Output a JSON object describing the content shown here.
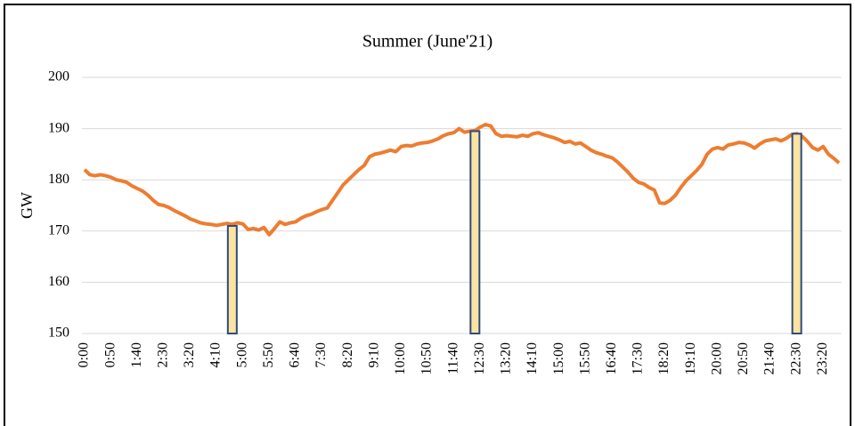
{
  "chart_data": {
    "type": "line",
    "title": "Summer (June'21)",
    "y_label": "GW",
    "categories": [
      "0:00",
      null,
      null,
      null,
      null,
      "0:50",
      null,
      null,
      null,
      null,
      "1:40",
      null,
      null,
      null,
      null,
      "2:30",
      null,
      null,
      null,
      null,
      "3:20",
      null,
      null,
      null,
      null,
      "4:10",
      null,
      null,
      null,
      null,
      "5:00",
      null,
      null,
      null,
      null,
      "5:50",
      null,
      null,
      null,
      null,
      "6:40",
      null,
      null,
      null,
      null,
      "7:30",
      null,
      null,
      null,
      null,
      "8:20",
      null,
      null,
      null,
      null,
      "9:10",
      null,
      null,
      null,
      null,
      "10:00",
      null,
      null,
      null,
      null,
      "10:50",
      null,
      null,
      null,
      null,
      "11:40",
      null,
      null,
      null,
      null,
      "12:30",
      null,
      null,
      null,
      null,
      "13:20",
      null,
      null,
      null,
      null,
      "14:10",
      null,
      null,
      null,
      null,
      "15:00",
      null,
      null,
      null,
      null,
      "15:50",
      null,
      null,
      null,
      null,
      "16:40",
      null,
      null,
      null,
      null,
      "17:30",
      null,
      null,
      null,
      null,
      "18:20",
      null,
      null,
      null,
      null,
      "19:10",
      null,
      null,
      null,
      null,
      "20:00",
      null,
      null,
      null,
      null,
      "20:50",
      null,
      null,
      null,
      null,
      "21:40",
      null,
      null,
      null,
      null,
      "22:30",
      null,
      null,
      null,
      null,
      "23:20",
      null,
      null,
      null
    ],
    "series": [
      {
        "type": "line",
        "color": "#ed7d31",
        "values": [
          182,
          181,
          180.8,
          181,
          180.8,
          180.5,
          180,
          179.8,
          179.5,
          178.8,
          178.3,
          177.8,
          177,
          176,
          175.2,
          175,
          174.6,
          174,
          173.5,
          173,
          172.4,
          172,
          171.6,
          171.4,
          171.3,
          171.1,
          171.3,
          171.5,
          171.3,
          171.6,
          171.4,
          170.3,
          170.5,
          170.2,
          170.7,
          169.3,
          170.5,
          171.8,
          171.3,
          171.6,
          171.8,
          172.5,
          173,
          173.3,
          173.8,
          174.2,
          174.5,
          176,
          177.5,
          179,
          180,
          181,
          182,
          182.8,
          184.5,
          185,
          185.2,
          185.5,
          185.8,
          185.5,
          186.5,
          186.7,
          186.6,
          187,
          187.2,
          187.3,
          187.6,
          188,
          188.6,
          189,
          189.2,
          190,
          189.3,
          189.5,
          189.6,
          190.3,
          190.8,
          190.5,
          189,
          188.5,
          188.6,
          188.5,
          188.4,
          188.7,
          188.5,
          189,
          189.2,
          188.8,
          188.5,
          188.2,
          187.8,
          187.3,
          187.5,
          187,
          187.2,
          186.5,
          185.8,
          185.3,
          185,
          184.6,
          184.3,
          183.5,
          182.5,
          181.5,
          180.3,
          179.5,
          179.2,
          178.5,
          178,
          175.5,
          175.4,
          176,
          177,
          178.5,
          179.8,
          180.8,
          181.8,
          183,
          185,
          186,
          186.3,
          186,
          186.8,
          187,
          187.3,
          187.2,
          186.8,
          186.2,
          187,
          187.6,
          187.8,
          188,
          187.6,
          188.1,
          188.8,
          189,
          188.5,
          187.5,
          186.3,
          185.8,
          186.5,
          185,
          184.2,
          183.3
        ]
      },
      {
        "type": "bar",
        "color": "#fbe3a0",
        "edge_color": "#2e4b7d",
        "values": [
          null,
          null,
          null,
          null,
          null,
          null,
          null,
          null,
          null,
          null,
          null,
          null,
          null,
          null,
          null,
          null,
          null,
          null,
          null,
          null,
          null,
          null,
          null,
          null,
          null,
          null,
          null,
          null,
          171,
          null,
          null,
          null,
          null,
          null,
          null,
          null,
          null,
          null,
          null,
          null,
          null,
          null,
          null,
          null,
          null,
          null,
          null,
          null,
          null,
          null,
          null,
          null,
          null,
          null,
          null,
          null,
          null,
          null,
          null,
          null,
          null,
          null,
          null,
          null,
          null,
          null,
          null,
          null,
          null,
          null,
          null,
          null,
          null,
          null,
          189.5,
          null,
          null,
          null,
          null,
          null,
          null,
          null,
          null,
          null,
          null,
          null,
          null,
          null,
          null,
          null,
          null,
          null,
          null,
          null,
          null,
          null,
          null,
          null,
          null,
          null,
          null,
          null,
          null,
          null,
          null,
          null,
          null,
          null,
          null,
          null,
          null,
          null,
          null,
          null,
          null,
          null,
          null,
          null,
          null,
          null,
          null,
          null,
          null,
          null,
          null,
          null,
          null,
          null,
          null,
          null,
          null,
          null,
          null,
          null,
          null,
          189,
          null,
          null,
          null,
          null,
          null,
          null,
          null,
          null
        ]
      }
    ],
    "ylim": [
      150,
      200
    ],
    "yticks": [
      150,
      160,
      170,
      180,
      190,
      200
    ],
    "grid": true
  }
}
